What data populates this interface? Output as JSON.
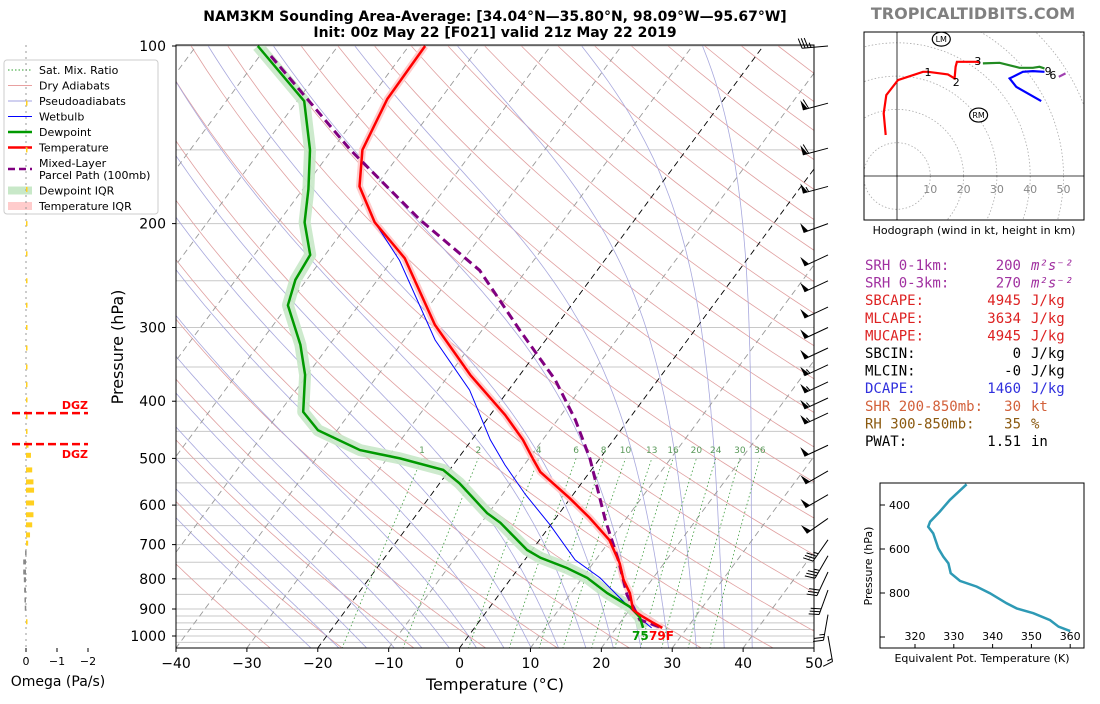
{
  "header": {
    "title_line1": "NAM3KM Sounding Area-Average: [34.04°N—35.80°N, 98.09°W—95.67°W]",
    "title_line2": "Init: 00z May 22 [F021] valid 21z May 22 2019",
    "brand": "TROPICALTIDBITS.COM"
  },
  "legend": {
    "items": [
      {
        "label": "Sat. Mix. Ratio",
        "color": "#2ca02c",
        "style": "dotted"
      },
      {
        "label": "Dry Adiabats",
        "color": "#e8a0a0",
        "style": "solid"
      },
      {
        "label": "Pseudoadiabats",
        "color": "#a0a0e0",
        "style": "solid"
      },
      {
        "label": "Wetbulb",
        "color": "#0000ff",
        "style": "solid"
      },
      {
        "label": "Dewpoint",
        "color": "#009900",
        "style": "thick"
      },
      {
        "label": "Temperature",
        "color": "#ff0000",
        "style": "thick"
      },
      {
        "label": "Mixed-Layer",
        "label2": "Parcel Path (100mb)",
        "color": "#800080",
        "style": "dashed"
      },
      {
        "label": "Dewpoint IQR",
        "color": "#c8e8c8",
        "style": "band"
      },
      {
        "label": "Temperature IQR",
        "color": "#ffcccc",
        "style": "band"
      }
    ]
  },
  "stats": [
    {
      "label": "SRH 0-1km:",
      "value": "200",
      "unit": "m²s⁻²",
      "color": "#a030a0"
    },
    {
      "label": "SRH 0-3km:",
      "value": "270",
      "unit": "m²s⁻²",
      "color": "#a030a0"
    },
    {
      "label": "SBCAPE:",
      "value": "4945",
      "unit": "J/kg",
      "color": "#dd2222"
    },
    {
      "label": "MLCAPE:",
      "value": "3634",
      "unit": "J/kg",
      "color": "#dd2222"
    },
    {
      "label": "MUCAPE:",
      "value": "4945",
      "unit": "J/kg",
      "color": "#dd2222"
    },
    {
      "label": "SBCIN:",
      "value": "0",
      "unit": "J/kg",
      "color": "#000000"
    },
    {
      "label": "MLCIN:",
      "value": "-0",
      "unit": "J/kg",
      "color": "#000000"
    },
    {
      "label": "DCAPE:",
      "value": "1460",
      "unit": "J/kg",
      "color": "#3030dd"
    },
    {
      "label": "SHR 200-850mb:",
      "value": "30",
      "unit": "kt",
      "color": "#d2603a"
    },
    {
      "label": "RH 300-850mb:",
      "value": "35",
      "unit": "%",
      "color": "#8b5a10"
    },
    {
      "label": "PWAT:",
      "value": "1.51",
      "unit": "in",
      "color": "#000000"
    }
  ],
  "chart_data": [
    {
      "type": "line",
      "name": "skew-t",
      "xlabel": "Temperature (°C)",
      "ylabel": "Pressure (hPa)",
      "xlim": [
        -40,
        50
      ],
      "ylim": [
        1050,
        100
      ],
      "y_scale": "log",
      "xticks": [
        -40,
        -30,
        -20,
        -10,
        0,
        10,
        20,
        30,
        40,
        50
      ],
      "yticks": [
        100,
        200,
        300,
        400,
        500,
        600,
        700,
        800,
        900,
        1000
      ],
      "mixing_ratio_labels": [
        "1",
        "2",
        "4",
        "6",
        "8",
        "10",
        "13",
        "16",
        "20",
        "24",
        "30",
        "36"
      ],
      "surface_dewpoint_label": "75",
      "surface_temperature_label": "79F",
      "series": [
        {
          "name": "Temperature",
          "color": "#ff0000",
          "points": [
            [
              100,
              -67.7
            ],
            [
              123,
              -67.5
            ],
            [
              150,
              -65.7
            ],
            [
              173,
              -62.3
            ],
            [
              199,
              -56.4
            ],
            [
              229,
              -48.4
            ],
            [
              297,
              -37.2
            ],
            [
              361,
              -27.0
            ],
            [
              422,
              -17.9
            ],
            [
              465,
              -12.8
            ],
            [
              503,
              -9.2
            ],
            [
              527,
              -7.0
            ],
            [
              584,
              -0.1
            ],
            [
              631,
              4.8
            ],
            [
              688,
              9.9
            ],
            [
              752,
              13.7
            ],
            [
              803,
              16.0
            ],
            [
              846,
              18.3
            ],
            [
              903,
              20.5
            ],
            [
              921,
              22.0
            ],
            [
              950,
              24.7
            ],
            [
              969,
              26.5
            ]
          ]
        },
        {
          "name": "Dewpoint",
          "color": "#009900",
          "points": [
            [
              100,
              -91.3
            ],
            [
              124,
              -79.0
            ],
            [
              150,
              -73.1
            ],
            [
              175,
              -69.2
            ],
            [
              199,
              -66.3
            ],
            [
              226,
              -62.1
            ],
            [
              249,
              -61.6
            ],
            [
              275,
              -60.0
            ],
            [
              321,
              -54.1
            ],
            [
              361,
              -50.3
            ],
            [
              417,
              -46.7
            ],
            [
              448,
              -42.7
            ],
            [
              484,
              -34.7
            ],
            [
              500,
              -28.2
            ],
            [
              523,
              -20.9
            ],
            [
              551,
              -17.2
            ],
            [
              619,
              -10.2
            ],
            [
              643,
              -7.3
            ],
            [
              715,
              -0.7
            ],
            [
              737,
              2.0
            ],
            [
              767,
              6.8
            ],
            [
              797,
              10.7
            ],
            [
              846,
              15.1
            ],
            [
              893,
              19.8
            ],
            [
              929,
              22.2
            ],
            [
              969,
              23.8
            ]
          ]
        },
        {
          "name": "Wetbulb",
          "color": "#0000ff",
          "points": [
            [
              199,
              -56.4
            ],
            [
              231,
              -48.9
            ],
            [
              315,
              -35.6
            ],
            [
              383,
              -25.5
            ],
            [
              465,
              -17.4
            ],
            [
              513,
              -12.7
            ],
            [
              576,
              -6.7
            ],
            [
              648,
              -0.1
            ],
            [
              743,
              7.1
            ],
            [
              797,
              12.5
            ],
            [
              869,
              17.9
            ],
            [
              932,
              22.3
            ],
            [
              969,
              25.0
            ]
          ]
        },
        {
          "name": "Mixed-Layer Parcel Path (100mb)",
          "color": "#800080",
          "points": [
            [
              104,
              -88.4
            ],
            [
              150,
              -67.4
            ],
            [
              197,
              -50.3
            ],
            [
              240,
              -36.6
            ],
            [
              303,
              -24.7
            ],
            [
              368,
              -14.5
            ],
            [
              430,
              -7.5
            ],
            [
              500,
              -1.4
            ],
            [
              636,
              7.2
            ],
            [
              743,
              13.2
            ],
            [
              852,
              18.1
            ],
            [
              939,
              22.5
            ],
            [
              969,
              26.5
            ]
          ]
        }
      ],
      "wind_barbs": [
        [
          100,
          265,
          35
        ],
        [
          125,
          255,
          60
        ],
        [
          149,
          255,
          60
        ],
        [
          173,
          255,
          55
        ],
        [
          200,
          250,
          50
        ],
        [
          226,
          245,
          50
        ],
        [
          250,
          245,
          50
        ],
        [
          277,
          245,
          50
        ],
        [
          300,
          245,
          50
        ],
        [
          325,
          245,
          50
        ],
        [
          347,
          245,
          55
        ],
        [
          371,
          245,
          55
        ],
        [
          395,
          245,
          55
        ],
        [
          419,
          245,
          55
        ],
        [
          475,
          245,
          50
        ],
        [
          525,
          240,
          50
        ],
        [
          576,
          240,
          50
        ],
        [
          632,
          235,
          50
        ],
        [
          687,
          215,
          35
        ],
        [
          731,
          210,
          35
        ],
        [
          779,
          205,
          30
        ],
        [
          836,
          200,
          30
        ],
        [
          920,
          190,
          25
        ],
        [
          1000,
          170,
          15
        ]
      ]
    },
    {
      "type": "line",
      "name": "hodograph",
      "xlabel": "Hodograph (wind in kt, height in km)",
      "ring_labels": [
        "10",
        "20",
        "30",
        "40",
        "50"
      ],
      "series": [
        {
          "segment": "0-3 km",
          "color": "#ff0000",
          "points": [
            [
              -3.4,
              12.3
            ],
            [
              -4,
              18.8
            ],
            [
              -3.2,
              24.3
            ],
            [
              0.3,
              28.8
            ],
            [
              7.8,
              31.3
            ],
            [
              9.3,
              31.3
            ],
            [
              15.3,
              30.5
            ],
            [
              17.3,
              29.3
            ],
            [
              17.6,
              32.8
            ],
            [
              18,
              34.3
            ],
            [
              23.8,
              34.3
            ],
            [
              24.8,
              34.1
            ]
          ]
        },
        {
          "segment": "3-6 km",
          "color": "#228b22",
          "points": [
            [
              25.8,
              33.8
            ],
            [
              30.8,
              34
            ],
            [
              36.8,
              32.5
            ],
            [
              40.8,
              32.5
            ],
            [
              42.8,
              32.8
            ],
            [
              44.3,
              32.3
            ]
          ]
        },
        {
          "segment": "6-9 km",
          "color": "#0000ff",
          "points": [
            [
              44.3,
              31.3
            ],
            [
              40.8,
              31.5
            ],
            [
              37.8,
              31.3
            ],
            [
              34.8,
              29.8
            ],
            [
              33.8,
              29.3
            ],
            [
              35.8,
              26.8
            ],
            [
              43.3,
              22.5
            ]
          ]
        },
        {
          "segment": "9+ km",
          "color": "#a040b0",
          "points": [
            [
              48.6,
              29.8
            ],
            [
              50.6,
              30.8
            ]
          ]
        }
      ],
      "height_labels": [
        {
          "text": "1",
          "u": 9.3,
          "v": 31.3
        },
        {
          "text": "2",
          "u": 17.8,
          "v": 28.3
        },
        {
          "text": "3",
          "u": 24.3,
          "v": 34.5
        },
        {
          "text": "9",
          "u": 45.4,
          "v": 31.5
        },
        {
          "text": "6",
          "u": 46.8,
          "v": 30.3
        }
      ],
      "storm_motion": [
        {
          "text": "LM",
          "u": 13.3,
          "v": 41.1
        },
        {
          "text": "RM",
          "u": 24.5,
          "v": 18.3
        }
      ]
    },
    {
      "type": "line",
      "name": "theta-e",
      "xlabel": "Equivalent Pot. Temperature (K)",
      "ylabel": "Pressure (hPa)",
      "xticks": [
        320,
        330,
        340,
        350,
        360
      ],
      "yticks": [
        400,
        600,
        800
      ],
      "xlim": [
        311,
        363
      ],
      "ylim": [
        1050,
        300
      ],
      "color": "#2e9ab5",
      "points": [
        [
          333.3,
          306
        ],
        [
          329,
          377
        ],
        [
          326.4,
          430
        ],
        [
          323.9,
          476
        ],
        [
          323.4,
          499
        ],
        [
          324.7,
          529
        ],
        [
          326,
          597
        ],
        [
          327.3,
          635
        ],
        [
          328.6,
          665
        ],
        [
          329.2,
          710
        ],
        [
          331.6,
          745
        ],
        [
          335.9,
          771
        ],
        [
          339.3,
          801
        ],
        [
          343.6,
          847
        ],
        [
          346.2,
          870
        ],
        [
          350.5,
          892
        ],
        [
          354.8,
          923
        ],
        [
          357,
          953
        ],
        [
          360,
          973
        ]
      ]
    },
    {
      "type": "bar",
      "name": "omega",
      "xlabel": "Omega (Pa/s)",
      "xticks": [
        "0",
        "−1",
        "−2"
      ],
      "dgz_label": "DGZ",
      "dgz_bounds_hpa": [
        419,
        473
      ],
      "upward_color": "#ffd020",
      "downward_color": "#888888",
      "points": [
        [
          125,
          -0.01
        ],
        [
          150,
          -0.01
        ],
        [
          175,
          -0.01
        ],
        [
          200,
          -0.01
        ],
        [
          225,
          -0.01
        ],
        [
          250,
          -0.01
        ],
        [
          275,
          -0.01
        ],
        [
          300,
          -0.01
        ],
        [
          325,
          -0.01
        ],
        [
          350,
          -0.01
        ],
        [
          375,
          -0.01
        ],
        [
          398,
          -0.02
        ],
        [
          425,
          -0.03
        ],
        [
          450,
          -0.04
        ],
        [
          475,
          -0.08
        ],
        [
          494,
          -0.16
        ],
        [
          523,
          -0.2
        ],
        [
          548,
          -0.24
        ],
        [
          566,
          -0.26
        ],
        [
          595,
          -0.26
        ],
        [
          623,
          -0.24
        ],
        [
          648,
          -0.2
        ],
        [
          674,
          -0.13
        ],
        [
          696,
          -0.07
        ],
        [
          723,
          0.03
        ],
        [
          749,
          0.09
        ],
        [
          779,
          0.09
        ],
        [
          803,
          0.07
        ],
        [
          836,
          0.06
        ],
        [
          869,
          0.05
        ],
        [
          897,
          0.04
        ],
        [
          946,
          -0.03
        ]
      ]
    }
  ]
}
